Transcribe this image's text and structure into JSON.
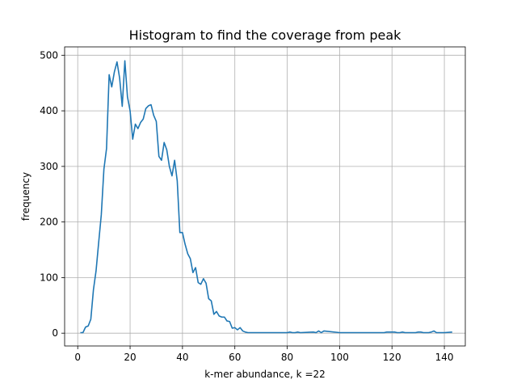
{
  "chart_data": {
    "type": "line",
    "title": "Histogram to find the coverage from peak",
    "xlabel": "k-mer abundance, k =22",
    "ylabel": "frequency",
    "xlim": [
      -5,
      148
    ],
    "ylim": [
      -23,
      515
    ],
    "xticks": [
      0,
      20,
      40,
      60,
      80,
      100,
      120,
      140
    ],
    "yticks": [
      0,
      100,
      200,
      300,
      400,
      500
    ],
    "grid": true,
    "series": [
      {
        "color": "#1f77b4",
        "x": [
          1,
          2,
          3,
          4,
          5,
          6,
          7,
          8,
          9,
          10,
          11,
          12,
          13,
          14,
          15,
          16,
          17,
          18,
          19,
          20,
          21,
          22,
          23,
          24,
          25,
          26,
          27,
          28,
          29,
          30,
          31,
          32,
          33,
          34,
          35,
          36,
          37,
          38,
          39,
          40,
          41,
          42,
          43,
          44,
          45,
          46,
          47,
          48,
          49,
          50,
          51,
          52,
          53,
          54,
          55,
          56,
          57,
          58,
          59,
          60,
          61,
          62,
          63,
          64,
          65,
          70,
          75,
          80,
          81,
          82,
          83,
          84,
          85,
          90,
          91,
          92,
          93,
          94,
          100,
          110,
          117,
          118,
          119,
          120,
          121,
          122,
          123,
          124,
          125,
          129,
          130,
          131,
          132,
          133,
          134,
          135,
          136,
          137,
          138,
          140,
          143
        ],
        "y": [
          1,
          1,
          11,
          13,
          25,
          78,
          112,
          163,
          213,
          295,
          332,
          465,
          443,
          470,
          488,
          459,
          408,
          490,
          425,
          400,
          349,
          376,
          368,
          379,
          385,
          404,
          409,
          411,
          392,
          381,
          318,
          311,
          343,
          330,
          300,
          283,
          311,
          274,
          181,
          181,
          160,
          143,
          134,
          109,
          118,
          91,
          88,
          98,
          90,
          62,
          58,
          34,
          39,
          31,
          29,
          29,
          22,
          21,
          9,
          10,
          6,
          10,
          4,
          2,
          1,
          1,
          1,
          1,
          2,
          1,
          1,
          2,
          1,
          2,
          1,
          4,
          1,
          4,
          1,
          1,
          1,
          2,
          2,
          2,
          2,
          1,
          1,
          2,
          1,
          1,
          2,
          2,
          1,
          1,
          1,
          2,
          4,
          1,
          1,
          1,
          2
        ]
      }
    ]
  }
}
